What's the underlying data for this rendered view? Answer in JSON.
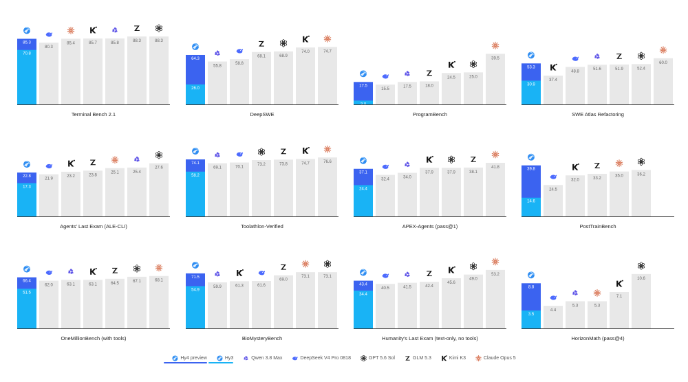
{
  "colors": {
    "preview": "#3b63f0",
    "hy3": "#19b3f5",
    "bar_gray": "#e8e8e8",
    "axis": "#333333",
    "value_text": "#666666",
    "value_text_on_color": "#ffffff"
  },
  "models": [
    {
      "key": "preview",
      "name": "Hy4 preview",
      "icon": "hy-globe-icon"
    },
    {
      "key": "hy3",
      "name": "Hy3",
      "icon": "hy-globe-icon"
    },
    {
      "key": "qwen",
      "name": "Qwen 3.8 Max",
      "icon": "qwen-star-icon"
    },
    {
      "key": "deepseek",
      "name": "DeepSeek V4 Pro 0818",
      "icon": "deepseek-whale-icon"
    },
    {
      "key": "gpt",
      "name": "GPT 5.6 Sol",
      "icon": "openai-knot-icon"
    },
    {
      "key": "glm",
      "name": "GLM 5.3",
      "icon": "zhipu-z-icon"
    },
    {
      "key": "kimi",
      "name": "Kimi K3",
      "icon": "kimi-k-icon"
    },
    {
      "key": "claude",
      "name": "Claude Opus 5",
      "icon": "claude-burst-icon"
    }
  ],
  "chart_data": [
    {
      "type": "bar",
      "title": "Terminal Bench 2.1",
      "ylim": [
        0,
        100
      ],
      "preview": 85.3,
      "hy3": 70.8,
      "others": [
        {
          "model": "deepseek",
          "value": 80.3
        },
        {
          "model": "claude",
          "value": 85.4
        },
        {
          "model": "kimi",
          "value": 85.7
        },
        {
          "model": "qwen",
          "value": 85.8
        },
        {
          "model": "glm",
          "value": 88.3
        },
        {
          "model": "gpt",
          "value": 88.3
        }
      ]
    },
    {
      "type": "bar",
      "title": "DeepSWE",
      "ylim": [
        0,
        100
      ],
      "preview": 64.3,
      "hy3": 26.0,
      "others": [
        {
          "model": "qwen",
          "value": 55.8
        },
        {
          "model": "deepseek",
          "value": 58.8
        },
        {
          "model": "glm",
          "value": 68.1
        },
        {
          "model": "gpt",
          "value": 68.9
        },
        {
          "model": "kimi",
          "value": 74.0
        },
        {
          "model": "claude",
          "value": 74.7
        }
      ]
    },
    {
      "type": "bar",
      "title": "ProgramBench",
      "ylim": [
        0,
        60
      ],
      "preview": 17.5,
      "hy3": 3.0,
      "others": [
        {
          "model": "deepseek",
          "value": 15.5
        },
        {
          "model": "qwen",
          "value": 17.5
        },
        {
          "model": "glm",
          "value": 18.0
        },
        {
          "model": "kimi",
          "value": 24.5
        },
        {
          "model": "gpt",
          "value": 25.0
        },
        {
          "model": "claude",
          "value": 39.5
        }
      ]
    },
    {
      "type": "bar",
      "title": "SWE Atlas Refactoring",
      "ylim": [
        0,
        100
      ],
      "preview": 53.3,
      "hy3": 30.9,
      "others": [
        {
          "model": "kimi",
          "value": 37.4
        },
        {
          "model": "deepseek",
          "value": 48.8
        },
        {
          "model": "qwen",
          "value": 51.6
        },
        {
          "model": "glm",
          "value": 51.9
        },
        {
          "model": "gpt",
          "value": 52.4
        },
        {
          "model": "claude",
          "value": 60.0
        }
      ]
    },
    {
      "type": "bar",
      "title": "Agents' Last Exam (ALE-CLI)",
      "ylim": [
        0,
        40
      ],
      "preview": 22.8,
      "hy3": 17.3,
      "others": [
        {
          "model": "deepseek",
          "value": 21.9
        },
        {
          "model": "kimi",
          "value": 23.2
        },
        {
          "model": "glm",
          "value": 23.8
        },
        {
          "model": "claude",
          "value": 25.1
        },
        {
          "model": "qwen",
          "value": 25.4
        },
        {
          "model": "gpt",
          "value": 27.6
        }
      ]
    },
    {
      "type": "bar",
      "title": "Toolathlon-Verified",
      "ylim": [
        0,
        100
      ],
      "preview": 74.1,
      "hy3": 58.2,
      "others": [
        {
          "model": "qwen",
          "value": 69.1
        },
        {
          "model": "deepseek",
          "value": 70.1
        },
        {
          "model": "gpt",
          "value": 73.2
        },
        {
          "model": "glm",
          "value": 73.8
        },
        {
          "model": "kimi",
          "value": 74.7
        },
        {
          "model": "claude",
          "value": 76.6
        }
      ]
    },
    {
      "type": "bar",
      "title": "APEX-Agents (pass@1)",
      "ylim": [
        0,
        60
      ],
      "preview": 37.1,
      "hy3": 24.4,
      "others": [
        {
          "model": "deepseek",
          "value": 32.4
        },
        {
          "model": "qwen",
          "value": 34.0
        },
        {
          "model": "kimi",
          "value": 37.9
        },
        {
          "model": "gpt",
          "value": 37.9
        },
        {
          "model": "glm",
          "value": 38.1
        },
        {
          "model": "claude",
          "value": 41.8
        }
      ]
    },
    {
      "type": "bar",
      "title": "PostTrainBench",
      "ylim": [
        0,
        60
      ],
      "preview": 39.8,
      "hy3": 14.6,
      "others": [
        {
          "model": "deepseek",
          "value": 24.5
        },
        {
          "model": "kimi",
          "value": 32.0
        },
        {
          "model": "glm",
          "value": 33.2
        },
        {
          "model": "claude",
          "value": 35.0
        },
        {
          "model": "gpt",
          "value": 36.2
        }
      ]
    },
    {
      "type": "bar",
      "title": "OneMillionBench (with tools)",
      "ylim": [
        0,
        100
      ],
      "preview": 66.4,
      "hy3": 51.5,
      "others": [
        {
          "model": "deepseek",
          "value": 62.0
        },
        {
          "model": "qwen",
          "value": 63.1
        },
        {
          "model": "kimi",
          "value": 63.1
        },
        {
          "model": "glm",
          "value": 64.5
        },
        {
          "model": "gpt",
          "value": 67.1
        },
        {
          "model": "claude",
          "value": 68.1
        }
      ]
    },
    {
      "type": "bar",
      "title": "BioMysteryBench",
      "ylim": [
        0,
        100
      ],
      "preview": 71.5,
      "hy3": 54.9,
      "others": [
        {
          "model": "qwen",
          "value": 59.9
        },
        {
          "model": "kimi",
          "value": 61.3
        },
        {
          "model": "deepseek",
          "value": 61.6
        },
        {
          "model": "glm",
          "value": 69.0
        },
        {
          "model": "claude",
          "value": 73.1
        },
        {
          "model": "gpt",
          "value": 73.1
        }
      ]
    },
    {
      "type": "bar",
      "title": "Humanity's Last Exam (text-only, no tools)",
      "ylim": [
        0,
        70
      ],
      "preview": 43.4,
      "hy3": 34.4,
      "others": [
        {
          "model": "deepseek",
          "value": 40.5
        },
        {
          "model": "qwen",
          "value": 41.5
        },
        {
          "model": "glm",
          "value": 42.4
        },
        {
          "model": "kimi",
          "value": 45.6
        },
        {
          "model": "gpt",
          "value": 49.0
        },
        {
          "model": "claude",
          "value": 53.2
        }
      ]
    },
    {
      "type": "bar",
      "title": "HorizonMath (pass@4)",
      "ylim": [
        0,
        15
      ],
      "preview": 8.8,
      "hy3": 3.5,
      "others": [
        {
          "model": "deepseek",
          "value": 4.4
        },
        {
          "model": "qwen",
          "value": 5.3
        },
        {
          "model": "claude",
          "value": 5.3
        },
        {
          "model": "kimi",
          "value": 7.1
        },
        {
          "model": "gpt",
          "value": 10.6
        }
      ]
    }
  ]
}
